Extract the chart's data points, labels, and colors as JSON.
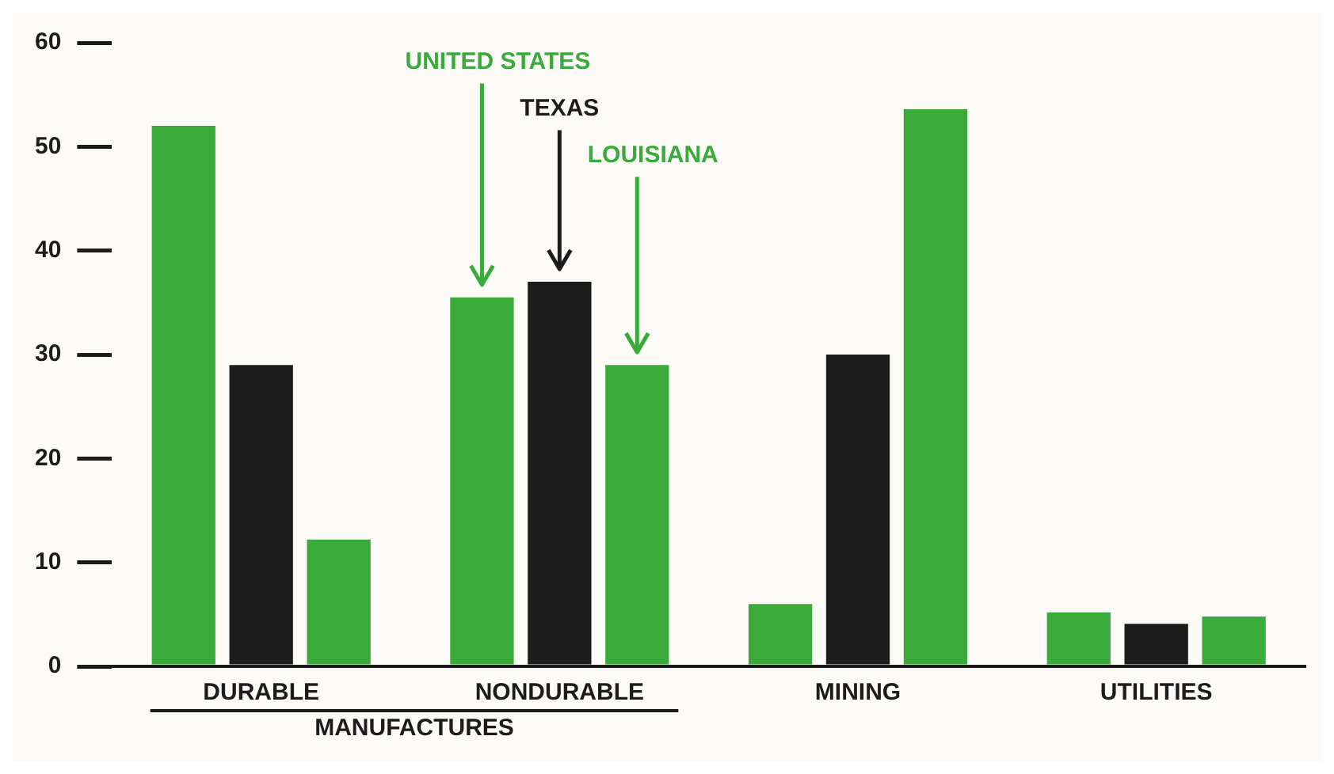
{
  "chart_data": {
    "type": "bar",
    "categories": [
      "DURABLE",
      "NONDURABLE",
      "MINING",
      "UTILITIES"
    ],
    "series": [
      {
        "name": "UNITED STATES",
        "color": "#3aaa3a",
        "values": [
          52,
          35.5,
          6,
          5.2
        ]
      },
      {
        "name": "TEXAS",
        "color": "#1c1c1c",
        "values": [
          29,
          37,
          30,
          4.1
        ]
      },
      {
        "name": "LOUISIANA",
        "color": "#3aaa3a",
        "values": [
          12.2,
          29,
          53.6,
          4.8
        ]
      }
    ],
    "ylim": [
      0,
      60
    ],
    "yticks": [
      0,
      10,
      20,
      30,
      40,
      50,
      60
    ],
    "grid": false,
    "legend": false,
    "annotations": [
      "MANUFACTURES"
    ]
  }
}
